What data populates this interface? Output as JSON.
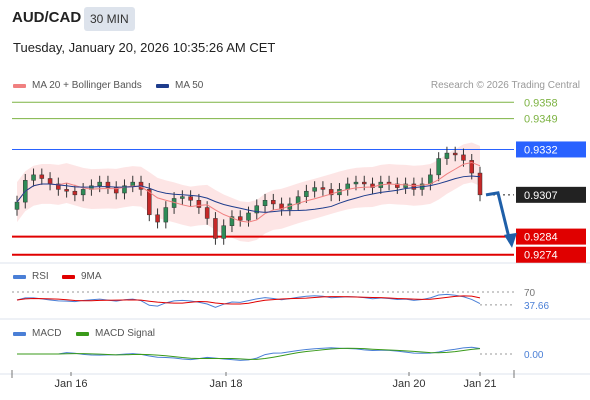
{
  "header": {
    "symbol": "AUD/CAD",
    "interval": "30 MIN",
    "datetime": "Tuesday, January 20, 2026 10:35:26 AM CET",
    "credit": "Research © 2026 Trading Central"
  },
  "colors": {
    "ma20": "#f08080",
    "ma50": "#1e3c8c",
    "bollinger_fill": "#fde0e0",
    "up_candle": "#2e8b57",
    "down_candle": "#c62828",
    "resistance": "#7db343",
    "pivot": "#2962ff",
    "support": "#e00000",
    "current": "#222222",
    "rsi": "#4a7fd6",
    "rsi_ma": "#e00000",
    "macd": "#4a7fd6",
    "macd_signal": "#3a9a1a"
  },
  "chart_data": [
    {
      "type": "candlestick",
      "legend": [
        "MA 20 + Bollinger Bands",
        "MA 50"
      ],
      "x_ticks": [
        "Jan 16",
        "Jan 18",
        "Jan 20",
        "Jan 21"
      ],
      "ylim": [
        0.927,
        0.9362
      ],
      "levels": [
        {
          "value": 0.9358,
          "label": "0.9358",
          "kind": "resistance"
        },
        {
          "value": 0.9349,
          "label": "0.9349",
          "kind": "resistance"
        },
        {
          "value": 0.9332,
          "label": "0.9332",
          "kind": "pivot"
        },
        {
          "value": 0.9307,
          "label": "0.9307",
          "kind": "current"
        },
        {
          "value": 0.9284,
          "label": "0.9284",
          "kind": "support"
        },
        {
          "value": 0.9274,
          "label": "0.9274",
          "kind": "support"
        }
      ],
      "close_path": [
        0.9303,
        0.9315,
        0.9318,
        0.9316,
        0.9313,
        0.931,
        0.9309,
        0.9307,
        0.931,
        0.9312,
        0.9314,
        0.9311,
        0.9308,
        0.9312,
        0.9314,
        0.931,
        0.9296,
        0.9292,
        0.93,
        0.9305,
        0.9306,
        0.9304,
        0.93,
        0.9294,
        0.9283,
        0.929,
        0.9295,
        0.9293,
        0.9297,
        0.9301,
        0.9304,
        0.9302,
        0.9299,
        0.9302,
        0.9306,
        0.9309,
        0.9311,
        0.931,
        0.9307,
        0.931,
        0.9313,
        0.9314,
        0.9313,
        0.9311,
        0.9314,
        0.9313,
        0.9311,
        0.9313,
        0.931,
        0.9313,
        0.9318,
        0.9327,
        0.933,
        0.9329,
        0.9326,
        0.9319,
        0.9307
      ],
      "projection": {
        "from": 0.9307,
        "to": 0.928
      }
    },
    {
      "type": "line",
      "legend": [
        "RSI",
        "9MA"
      ],
      "levels": [
        {
          "value": 70,
          "label": "70"
        },
        {
          "value": 37.66,
          "label": "37.66"
        }
      ]
    },
    {
      "type": "line",
      "legend": [
        "MACD",
        "MACD Signal"
      ],
      "levels": [
        {
          "value": 0.0,
          "label": "0.00"
        }
      ]
    }
  ]
}
